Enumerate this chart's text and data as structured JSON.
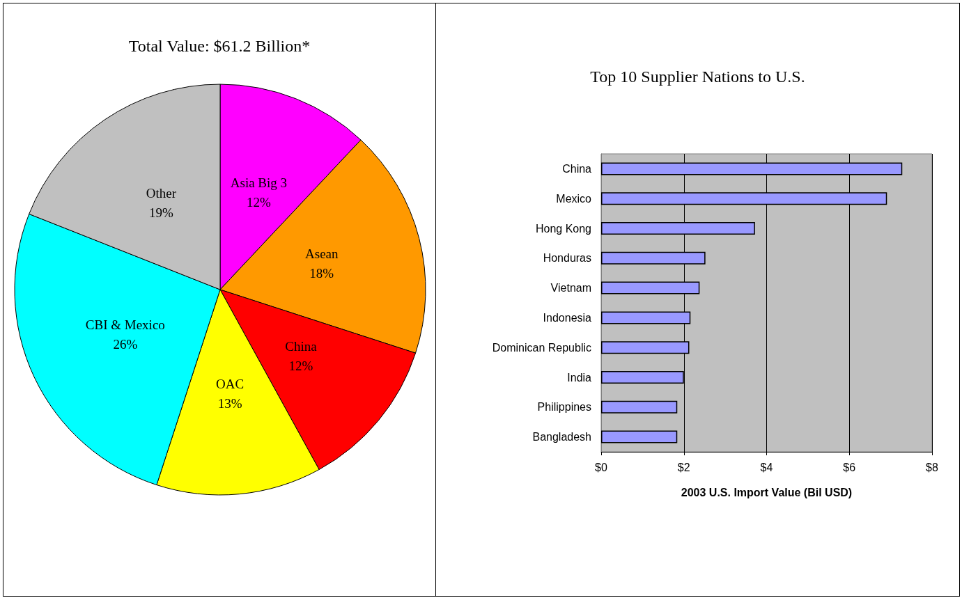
{
  "chart_data": [
    {
      "type": "pie",
      "title": "Total Value: $61.2 Billion*",
      "categories": [
        "Asia Big 3",
        "Asean",
        "China",
        "OAC",
        "CBI & Mexico",
        "Other"
      ],
      "values": [
        12,
        18,
        12,
        13,
        26,
        19
      ],
      "colors": [
        "#ff00ff",
        "#ff9900",
        "#ff0000",
        "#ffff00",
        "#00ffff",
        "#c0c0c0"
      ],
      "value_labels": [
        "12%",
        "18%",
        "12%",
        "13%",
        "26%",
        "19%"
      ]
    },
    {
      "type": "bar",
      "orientation": "horizontal",
      "title": "Top 10 Supplier Nations to U.S.",
      "xlabel": "2003 U.S. Import Value (Bil USD)",
      "categories": [
        "China",
        "Mexico",
        "Hong Kong",
        "Honduras",
        "Vietnam",
        "Indonesia",
        "Dominican Republic",
        "India",
        "Philippines",
        "Bangladesh"
      ],
      "values": [
        7.28,
        6.91,
        3.72,
        2.52,
        2.38,
        2.16,
        2.13,
        2.0,
        1.84,
        1.84
      ],
      "color": "#9999ff",
      "xlim": [
        0,
        8
      ],
      "xticks": [
        {
          "value": 0,
          "label": "$0"
        },
        {
          "value": 2,
          "label": "$2"
        },
        {
          "value": 4,
          "label": "$4"
        },
        {
          "value": 6,
          "label": "$6"
        },
        {
          "value": 8,
          "label": "$8"
        }
      ],
      "grid": "x"
    }
  ]
}
